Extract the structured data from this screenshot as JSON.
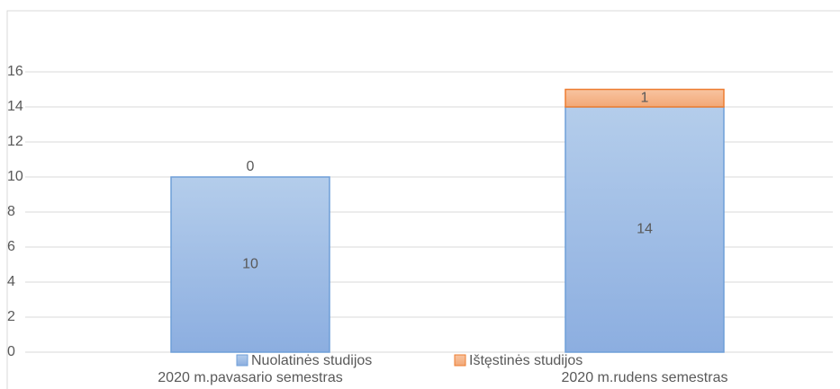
{
  "chart_data": {
    "type": "stacked_bar",
    "categories": [
      "2020 m.pavasario semestras",
      "2020 m.rudens semestras"
    ],
    "series": [
      {
        "name": "Nuolatinės studijos",
        "color": "#9dbde6",
        "values": [
          10,
          14
        ]
      },
      {
        "name": "Ištęstinės studijos",
        "color": "#f4b183",
        "values": [
          0,
          1
        ]
      }
    ],
    "ylim": [
      0,
      16
    ],
    "yticks": [
      0,
      2,
      4,
      6,
      8,
      10,
      12,
      14,
      16
    ],
    "grid": true,
    "legend": "bottom"
  }
}
